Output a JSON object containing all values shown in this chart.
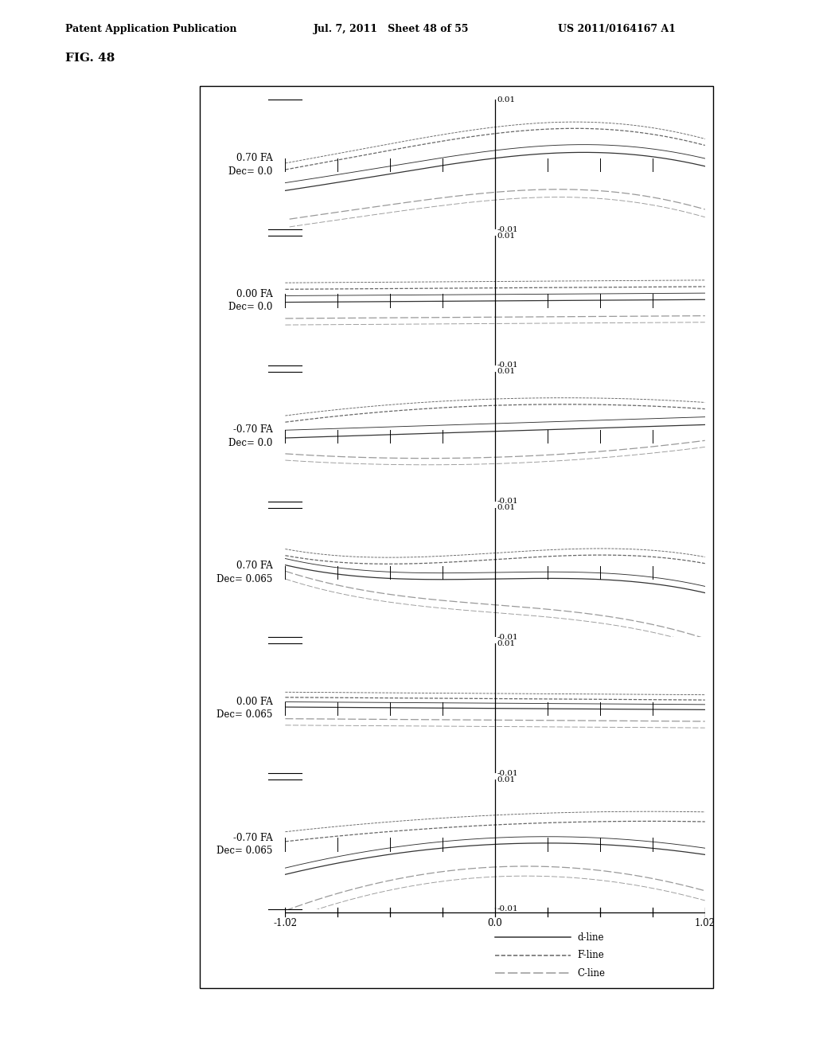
{
  "header_left": "Patent Application Publication",
  "header_mid": "Jul. 7, 2011   Sheet 48 of 55",
  "header_right": "US 2011/0164167 A1",
  "fig_label": "FIG. 48",
  "panels": [
    {
      "label_line1": "0.70 FA",
      "label_line2": "Dec= 0.0"
    },
    {
      "label_line1": "0.00 FA",
      "label_line2": "Dec= 0.0"
    },
    {
      "label_line1": "-0.70 FA",
      "label_line2": "Dec= 0.0"
    },
    {
      "label_line1": "0.70 FA",
      "label_line2": "Dec= 0.065"
    },
    {
      "label_line1": "0.00 FA",
      "label_line2": "Dec= 0.065"
    },
    {
      "label_line1": "-0.70 FA",
      "label_line2": "Dec= 0.065"
    }
  ],
  "xlim": [
    -1.02,
    1.02
  ],
  "ylim": [
    -0.01,
    0.01
  ],
  "d_color": "#333333",
  "f_color": "#666666",
  "c_color": "#999999",
  "bg_color": "#ffffff"
}
